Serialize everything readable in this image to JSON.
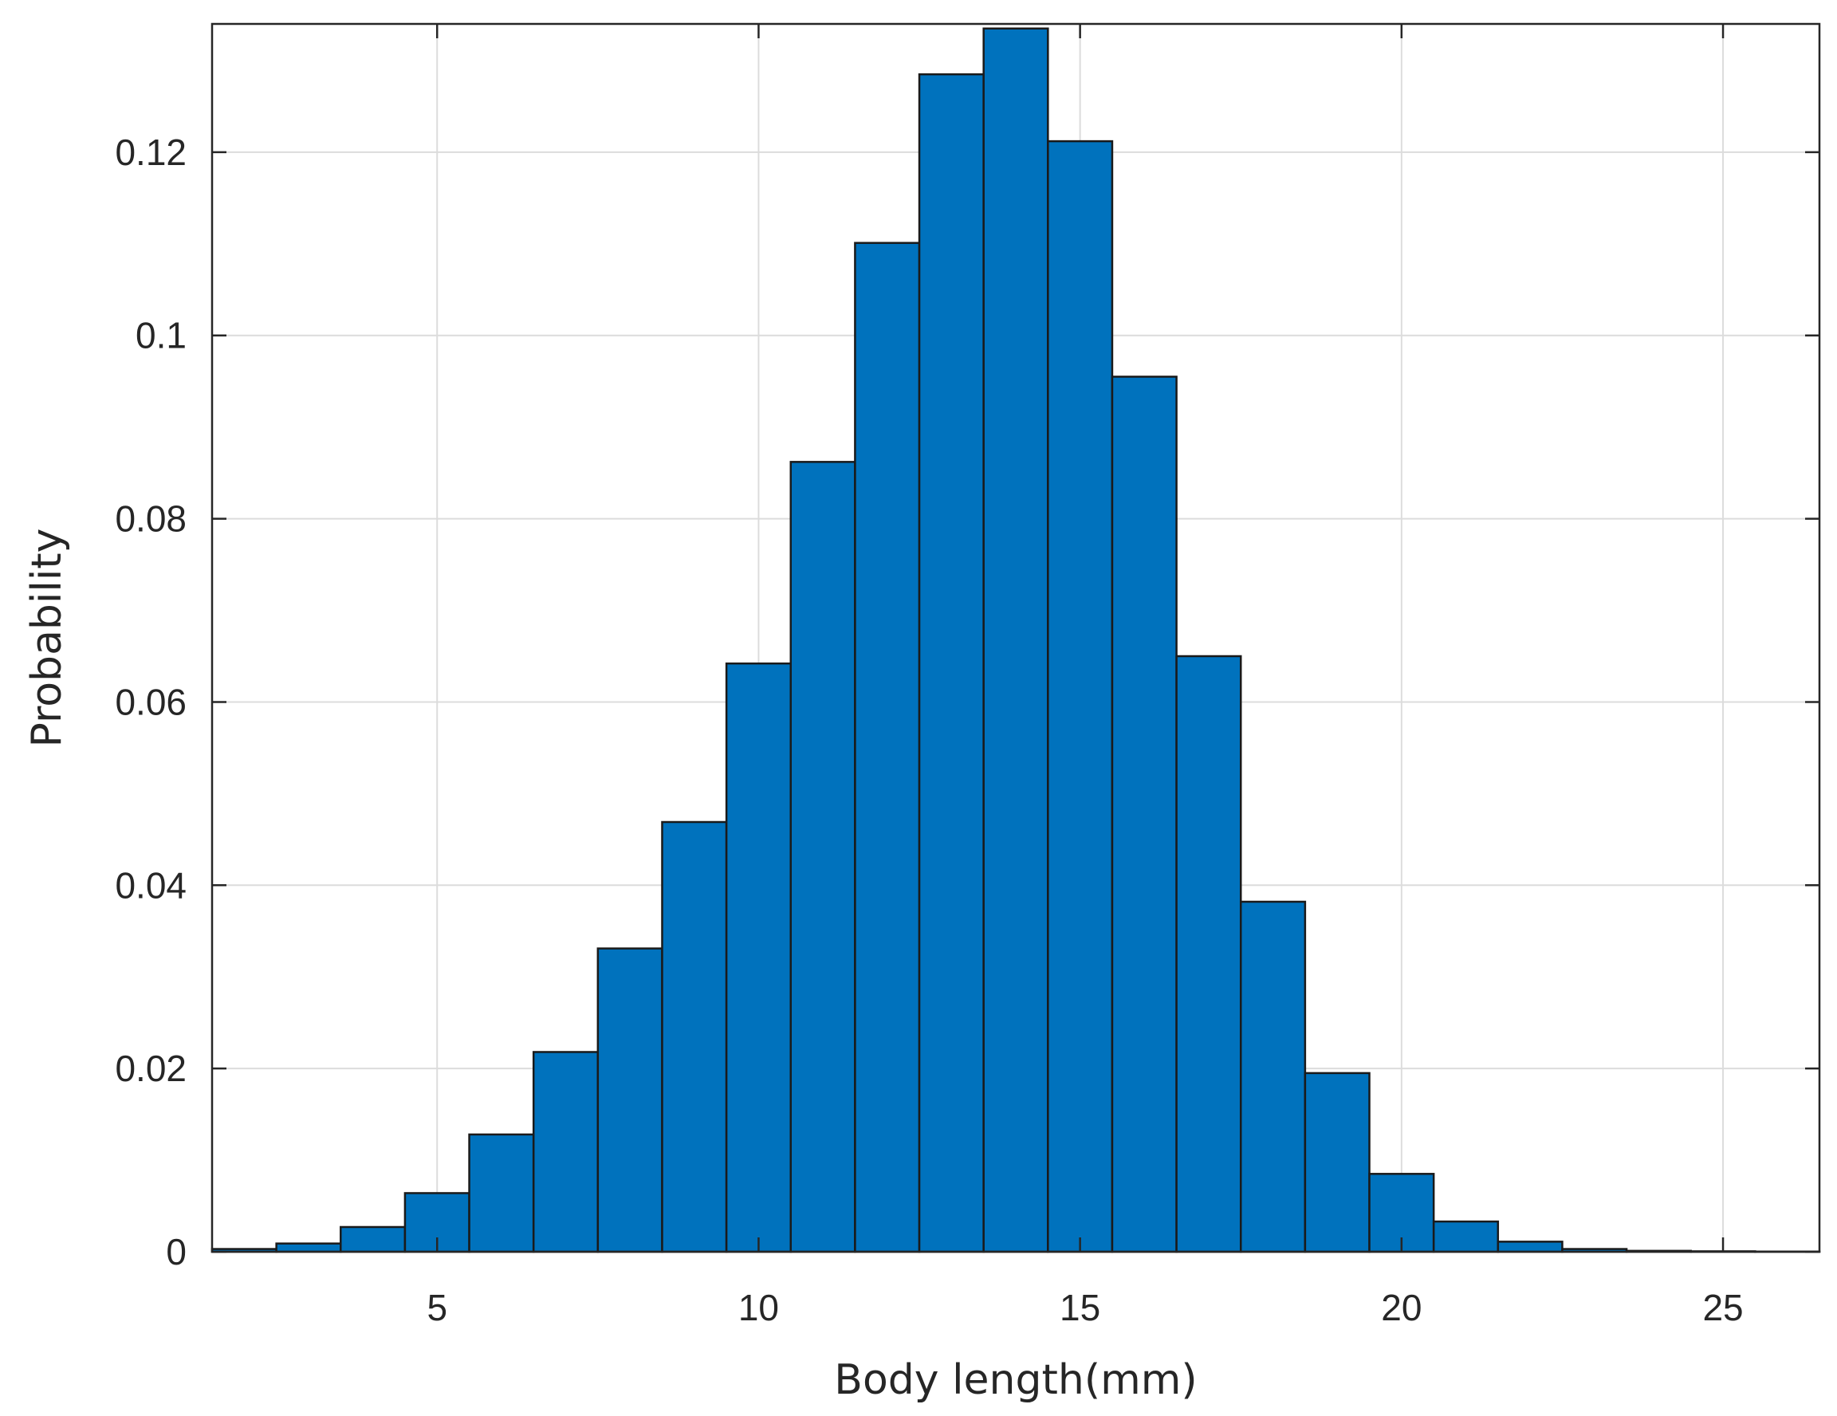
{
  "chart_data": {
    "type": "bar",
    "subtype": "histogram",
    "xlabel": "Body length(mm)",
    "ylabel": "Probability",
    "xlim": [
      1.5,
      26.5
    ],
    "ylim": [
      0,
      0.134
    ],
    "xticks": [
      5,
      10,
      15,
      20,
      25
    ],
    "xtick_labels": [
      "5",
      "10",
      "15",
      "20",
      "25"
    ],
    "yticks": [
      0,
      0.02,
      0.04,
      0.06,
      0.08,
      0.1,
      0.12
    ],
    "ytick_labels": [
      "0",
      "0.02",
      "0.04",
      "0.06",
      "0.08",
      "0.1",
      "0.12"
    ],
    "grid": true,
    "bin_edges": [
      1.5,
      2.5,
      3.5,
      4.5,
      5.5,
      6.5,
      7.5,
      8.5,
      9.5,
      10.5,
      11.5,
      12.5,
      13.5,
      14.5,
      15.5,
      16.5,
      17.5,
      18.5,
      19.5,
      20.5,
      21.5,
      22.5,
      23.5,
      24.5,
      25.5,
      26.5
    ],
    "values": [
      0.0003,
      0.0009,
      0.0027,
      0.0064,
      0.0128,
      0.0218,
      0.0331,
      0.0469,
      0.0642,
      0.0862,
      0.1101,
      0.1285,
      0.1335,
      0.1212,
      0.0955,
      0.065,
      0.0382,
      0.0195,
      0.0085,
      0.0033,
      0.0011,
      0.0003,
      0.0001,
      5e-05,
      2e-05
    ],
    "colors": {
      "bar": "#0072bd",
      "bar_edge": "#1a1a1a",
      "grid": "#dcdcdc",
      "axis": "#262626"
    }
  }
}
